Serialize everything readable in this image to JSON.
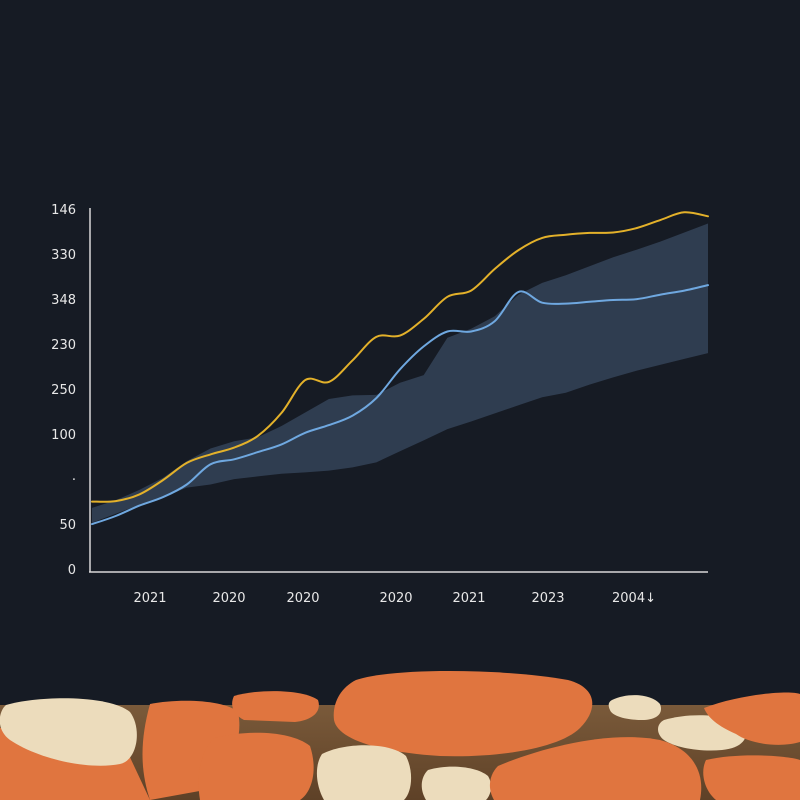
{
  "chart_data": {
    "type": "line",
    "title": "",
    "xlabel": "",
    "ylabel": "",
    "grid": false,
    "legend": "none",
    "x_tick_labels": [
      "2021",
      "2020",
      "2020",
      "2020",
      "2021",
      "2023",
      "2004↓"
    ],
    "y_tick_labels": [
      "0",
      "50",
      "·",
      "100",
      "250",
      "230",
      "348",
      "330",
      "146"
    ],
    "x": [
      0,
      1,
      2,
      3,
      4,
      5,
      6,
      7,
      8,
      9,
      10,
      11,
      12,
      13,
      14,
      15,
      16,
      17,
      18,
      19,
      20,
      21,
      22,
      23,
      24,
      25,
      26
    ],
    "series": [
      {
        "color": "#e3b12a",
        "values": [
          1.52,
          1.53,
          1.68,
          2.0,
          2.38,
          2.57,
          2.72,
          2.98,
          3.49,
          4.22,
          4.18,
          4.66,
          5.18,
          5.21,
          5.58,
          6.07,
          6.21,
          6.69,
          7.11,
          7.38,
          7.45,
          7.49,
          7.5,
          7.6,
          7.78,
          7.95,
          7.86
        ]
      },
      {
        "color": "#6fa8e0",
        "values": [
          1.02,
          1.2,
          1.43,
          1.62,
          1.9,
          2.35,
          2.46,
          2.62,
          2.79,
          3.05,
          3.22,
          3.43,
          3.82,
          4.46,
          4.97,
          5.3,
          5.3,
          5.53,
          6.18,
          5.94,
          5.92,
          5.96,
          6.0,
          6.02,
          6.12,
          6.21,
          6.33
        ]
      }
    ],
    "band": {
      "color": "#3d5068",
      "upper": [
        1.38,
        1.55,
        1.78,
        2.05,
        2.42,
        2.7,
        2.86,
        2.95,
        3.2,
        3.5,
        3.8,
        3.88,
        3.89,
        4.16,
        4.33,
        5.16,
        5.36,
        5.64,
        6.12,
        6.38,
        6.55,
        6.75,
        6.95,
        7.12,
        7.3,
        7.5,
        7.7
      ],
      "lower": [
        1.05,
        1.25,
        1.45,
        1.62,
        1.83,
        1.9,
        2.02,
        2.08,
        2.14,
        2.17,
        2.21,
        2.28,
        2.39,
        2.64,
        2.88,
        3.13,
        3.3,
        3.48,
        3.66,
        3.84,
        3.94,
        4.12,
        4.28,
        4.43,
        4.56,
        4.69,
        4.82
      ]
    },
    "ylim": [
      0,
      8
    ]
  }
}
